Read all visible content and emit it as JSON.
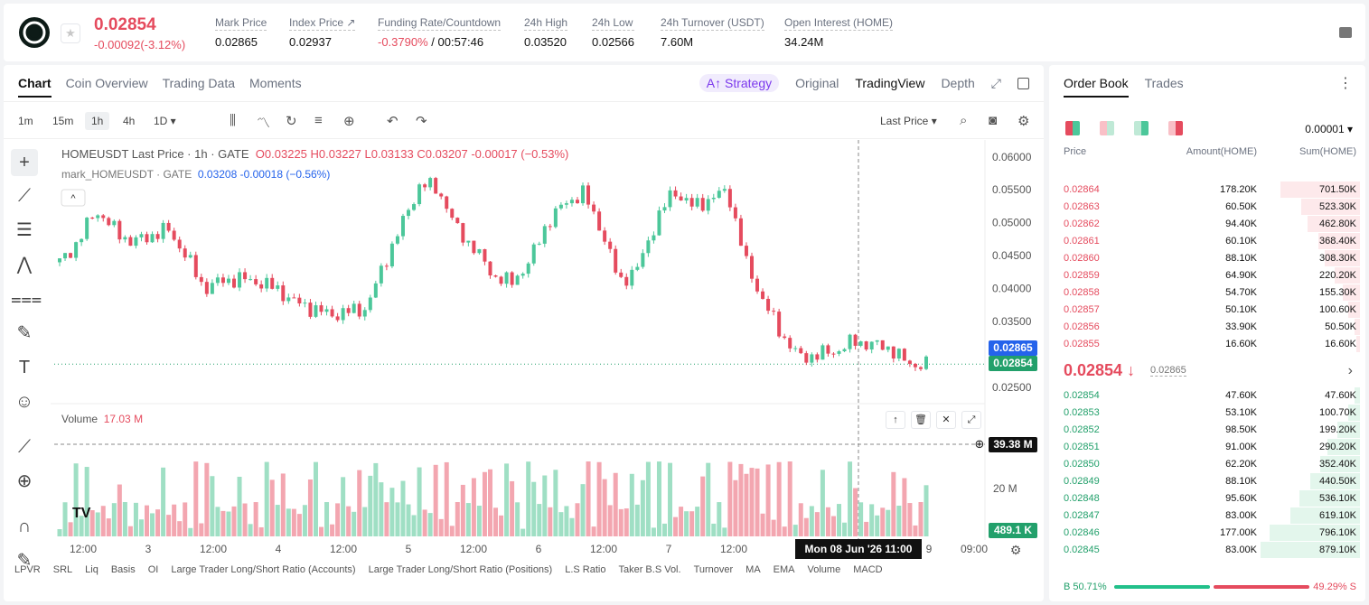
{
  "header": {
    "price": "0.02854",
    "change": "-0.00092(-3.12%)",
    "stats": [
      {
        "label": "Mark Price",
        "value": "0.02865"
      },
      {
        "label": "Index Price ↗",
        "value": "0.02937"
      },
      {
        "label": "Funding Rate/Countdown",
        "value": "-0.3790%",
        "value2": " / 00:57:46"
      },
      {
        "label": "24h High",
        "value": "0.03520"
      },
      {
        "label": "24h Low",
        "value": "0.02566"
      },
      {
        "label": "24h Turnover (USDT)",
        "value": "7.60M"
      },
      {
        "label": "Open Interest (HOME)",
        "value": "34.24M"
      }
    ]
  },
  "chart_tabs": {
    "chart": "Chart",
    "coin": "Coin Overview",
    "trading": "Trading Data",
    "moments": "Moments",
    "strategy": "A↑ Strategy",
    "original": "Original",
    "tradingview": "TradingView",
    "depth": "Depth"
  },
  "toolbar": {
    "tf1": "1m",
    "tf2": "15m",
    "tf3": "1h",
    "tf4": "4h",
    "tf5": "1D ▾",
    "lastprice": "Last Price ▾"
  },
  "legend": {
    "title": "HOMEUSDT Last Price · 1h · GATE",
    "ohlc": "O0.03225  H0.03227  L0.03133  C0.03207  -0.00017 (−0.53%)",
    "mark": "mark_HOMEUSDT · GATE",
    "mark_vals": "0.03208  -0.00018 (−0.56%)"
  },
  "volume": {
    "label": "Volume",
    "value": "17.03 M",
    "cross": "39.38 M",
    "axis20": "20 M",
    "last": "489.1 K"
  },
  "badges": {
    "mark": "0.02865",
    "last": "0.02854",
    "time": "Mon 08 Jun '26    11:00"
  },
  "indicators": [
    "LPVR",
    "SRL",
    "Liq",
    "Basis",
    "OI",
    "Large Trader Long/Short Ratio (Accounts)",
    "Large Trader Long/Short Ratio (Positions)",
    "L.S Ratio",
    "Taker B.S Vol.",
    "Turnover",
    "MA",
    "EMA",
    "Volume",
    "MACD"
  ],
  "chart_data": {
    "type": "candlestick",
    "title": "HOMEUSDT Last Price · 1h · GATE",
    "y_ticks": [
      "0.06000",
      "0.05500",
      "0.05000",
      "0.04500",
      "0.04000",
      "0.03500",
      "0.02500"
    ],
    "x_ticks": [
      "12:00",
      "3",
      "12:00",
      "4",
      "12:00",
      "5",
      "12:00",
      "6",
      "12:00",
      "7",
      "12:00",
      "9",
      "09:00"
    ],
    "ylim": [
      0.0235,
      0.0612
    ],
    "close_path": [
      0.044,
      0.047,
      0.052,
      0.049,
      0.047,
      0.048,
      0.049,
      0.045,
      0.04,
      0.0412,
      0.0415,
      0.041,
      0.04,
      0.038,
      0.037,
      0.036,
      0.0365,
      0.037,
      0.044,
      0.05,
      0.056,
      0.055,
      0.049,
      0.046,
      0.042,
      0.0408,
      0.044,
      0.05,
      0.053,
      0.0545,
      0.049,
      0.041,
      0.043,
      0.05,
      0.055,
      0.0525,
      0.0535,
      0.055,
      0.044,
      0.038,
      0.033,
      0.0295,
      0.03,
      0.0305,
      0.032,
      0.0315,
      0.031,
      0.0285,
      0.0285
    ]
  },
  "orderbook": {
    "tab1": "Order Book",
    "tab2": "Trades",
    "precision": "0.00001 ▾",
    "h_price": "Price",
    "h_amount": "Amount(HOME)",
    "h_sum": "Sum(HOME)",
    "asks": [
      [
        "0.02864",
        "178.20K",
        "701.50K"
      ],
      [
        "0.02863",
        "60.50K",
        "523.30K"
      ],
      [
        "0.02862",
        "94.40K",
        "462.80K"
      ],
      [
        "0.02861",
        "60.10K",
        "368.40K"
      ],
      [
        "0.02860",
        "88.10K",
        "308.30K"
      ],
      [
        "0.02859",
        "64.90K",
        "220.20K"
      ],
      [
        "0.02858",
        "54.70K",
        "155.30K"
      ],
      [
        "0.02857",
        "50.10K",
        "100.60K"
      ],
      [
        "0.02856",
        "33.90K",
        "50.50K"
      ],
      [
        "0.02855",
        "16.60K",
        "16.60K"
      ]
    ],
    "mid": "0.02854 ↓",
    "mark": "0.02865",
    "bids": [
      [
        "0.02854",
        "47.60K",
        "47.60K"
      ],
      [
        "0.02853",
        "53.10K",
        "100.70K"
      ],
      [
        "0.02852",
        "98.50K",
        "199.20K"
      ],
      [
        "0.02851",
        "91.00K",
        "290.20K"
      ],
      [
        "0.02850",
        "62.20K",
        "352.40K"
      ],
      [
        "0.02849",
        "88.10K",
        "440.50K"
      ],
      [
        "0.02848",
        "95.60K",
        "536.10K"
      ],
      [
        "0.02847",
        "83.00K",
        "619.10K"
      ],
      [
        "0.02846",
        "177.00K",
        "796.10K"
      ],
      [
        "0.02845",
        "83.00K",
        "879.10K"
      ]
    ],
    "buy": "B 50.71%",
    "sell": "49.29% S"
  },
  "colors": {
    "up": "#4cc79a",
    "down": "#e54b5e",
    "ask_bg": "#fde9eb",
    "bid_bg": "#e3f6ec"
  }
}
